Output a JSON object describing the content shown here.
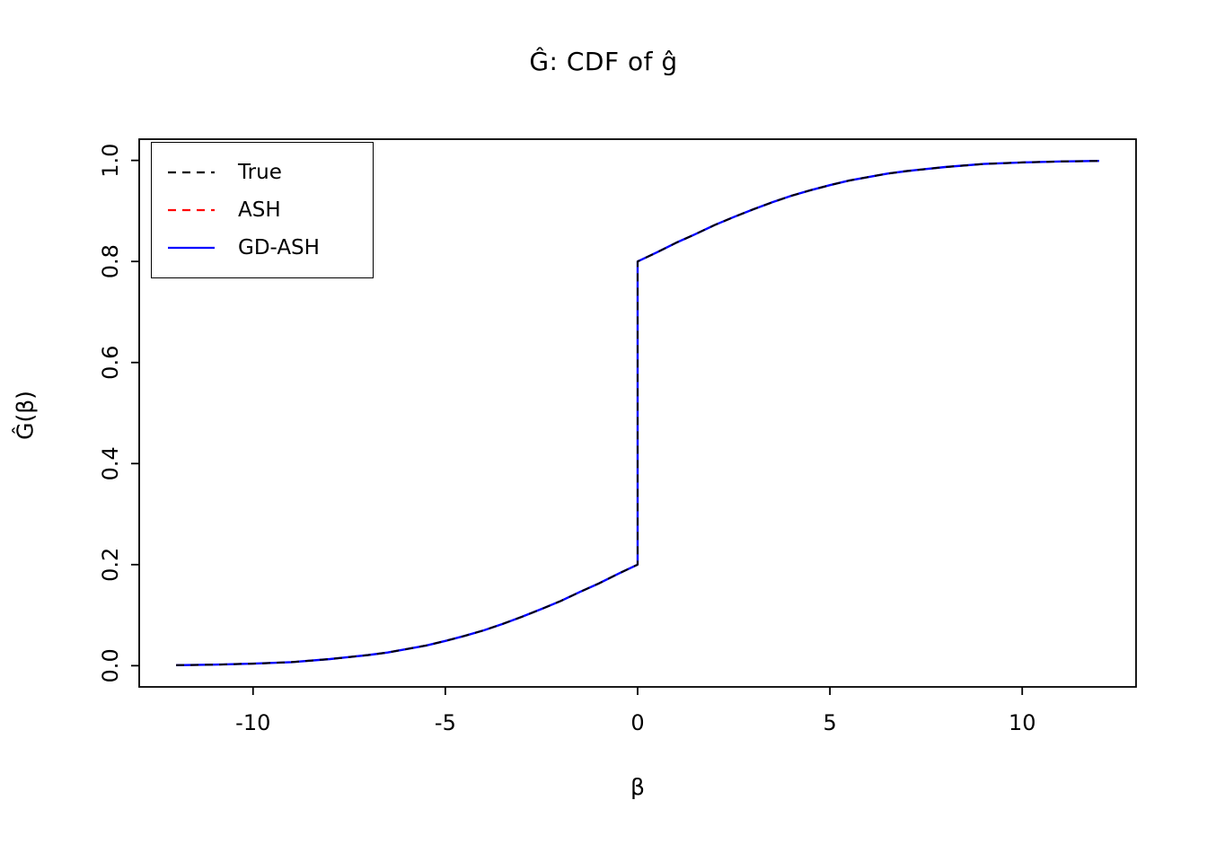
{
  "title": "Ĝ: CDF of ĝ",
  "chart_data": {
    "type": "line",
    "title": "Ĝ: CDF of ĝ",
    "xlabel": "β",
    "ylabel": "Ĝ(β)",
    "xlim": [
      -12.96,
      12.96
    ],
    "ylim": [
      -0.042,
      1.042
    ],
    "grid": false,
    "legend_position": "top-left",
    "x_ticks": {
      "values": [
        -10,
        -5,
        0,
        5,
        10
      ],
      "labels": [
        "-10",
        "-5",
        "0",
        "5",
        "10"
      ]
    },
    "y_ticks": {
      "values": [
        0.0,
        0.2,
        0.4,
        0.6,
        0.8,
        1.0
      ],
      "labels": [
        "0.0",
        "0.2",
        "0.4",
        "0.6",
        "0.8",
        "1.0"
      ]
    },
    "x": [
      -12,
      -11,
      -10,
      -9,
      -8,
      -7,
      -6.5,
      -6,
      -5.5,
      -5,
      -4.5,
      -4,
      -3.5,
      -3,
      -2.5,
      -2,
      -1.5,
      -1,
      -0.5,
      0,
      0,
      0.5,
      1,
      1.5,
      2,
      2.5,
      3,
      3.5,
      4,
      4.5,
      5,
      5.5,
      6,
      6.5,
      7,
      8,
      9,
      10,
      11,
      12
    ],
    "series": [
      {
        "name": "True",
        "color": "#000000",
        "dash": "dashed",
        "values": [
          0.001,
          0.002,
          0.004,
          0.007,
          0.013,
          0.021,
          0.026,
          0.033,
          0.04,
          0.049,
          0.059,
          0.07,
          0.083,
          0.097,
          0.112,
          0.128,
          0.146,
          0.163,
          0.182,
          0.2,
          0.8,
          0.818,
          0.837,
          0.854,
          0.872,
          0.888,
          0.903,
          0.917,
          0.93,
          0.941,
          0.951,
          0.96,
          0.967,
          0.974,
          0.979,
          0.987,
          0.993,
          0.996,
          0.998,
          0.999
        ]
      },
      {
        "name": "ASH",
        "color": "#ff0000",
        "dash": "dashed",
        "values": [
          0.001,
          0.002,
          0.004,
          0.007,
          0.013,
          0.021,
          0.026,
          0.033,
          0.04,
          0.049,
          0.059,
          0.07,
          0.083,
          0.097,
          0.112,
          0.128,
          0.146,
          0.163,
          0.182,
          0.2,
          0.8,
          0.818,
          0.837,
          0.854,
          0.872,
          0.888,
          0.903,
          0.917,
          0.93,
          0.941,
          0.951,
          0.96,
          0.967,
          0.974,
          0.979,
          0.987,
          0.993,
          0.996,
          0.998,
          0.999
        ]
      },
      {
        "name": "GD-ASH",
        "color": "#0000ff",
        "dash": "solid",
        "values": [
          0.001,
          0.002,
          0.004,
          0.007,
          0.013,
          0.021,
          0.026,
          0.033,
          0.04,
          0.049,
          0.059,
          0.07,
          0.083,
          0.097,
          0.112,
          0.128,
          0.146,
          0.163,
          0.182,
          0.2,
          0.8,
          0.818,
          0.837,
          0.854,
          0.872,
          0.888,
          0.903,
          0.917,
          0.93,
          0.941,
          0.951,
          0.96,
          0.967,
          0.974,
          0.979,
          0.987,
          0.993,
          0.996,
          0.998,
          0.999
        ]
      }
    ]
  }
}
